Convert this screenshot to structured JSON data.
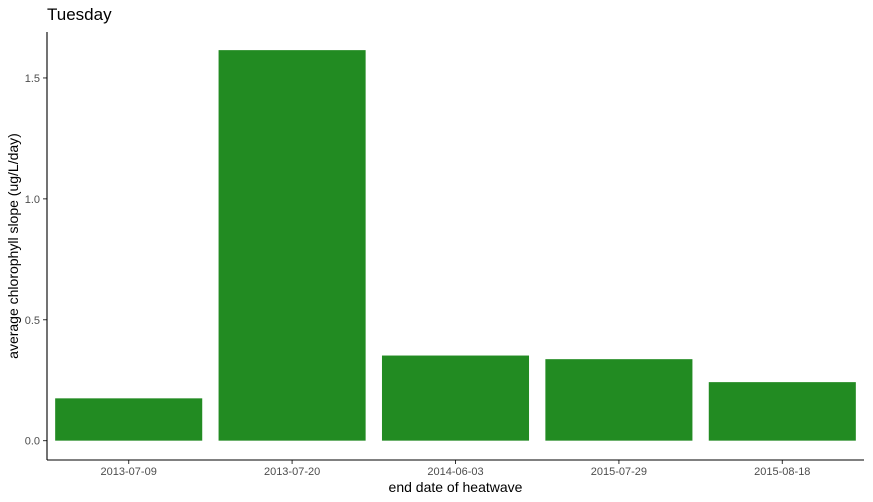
{
  "chart_data": {
    "type": "bar",
    "title": "Tuesday",
    "xlabel": "end date of heatwave",
    "ylabel": "average chlorophyll slope (ug/L/day)",
    "categories": [
      "2013-07-09",
      "2013-07-20",
      "2014-06-03",
      "2015-07-29",
      "2015-08-18"
    ],
    "values": [
      0.175,
      1.615,
      0.352,
      0.337,
      0.242
    ],
    "ylim": [
      -0.08,
      1.69
    ],
    "yticks": [
      0.0,
      0.5,
      1.0,
      1.5
    ],
    "ytick_labels": [
      "0.0",
      "0.5",
      "1.0",
      "1.5"
    ],
    "bar_color": "#228B22",
    "grid": false,
    "legend": "none"
  }
}
